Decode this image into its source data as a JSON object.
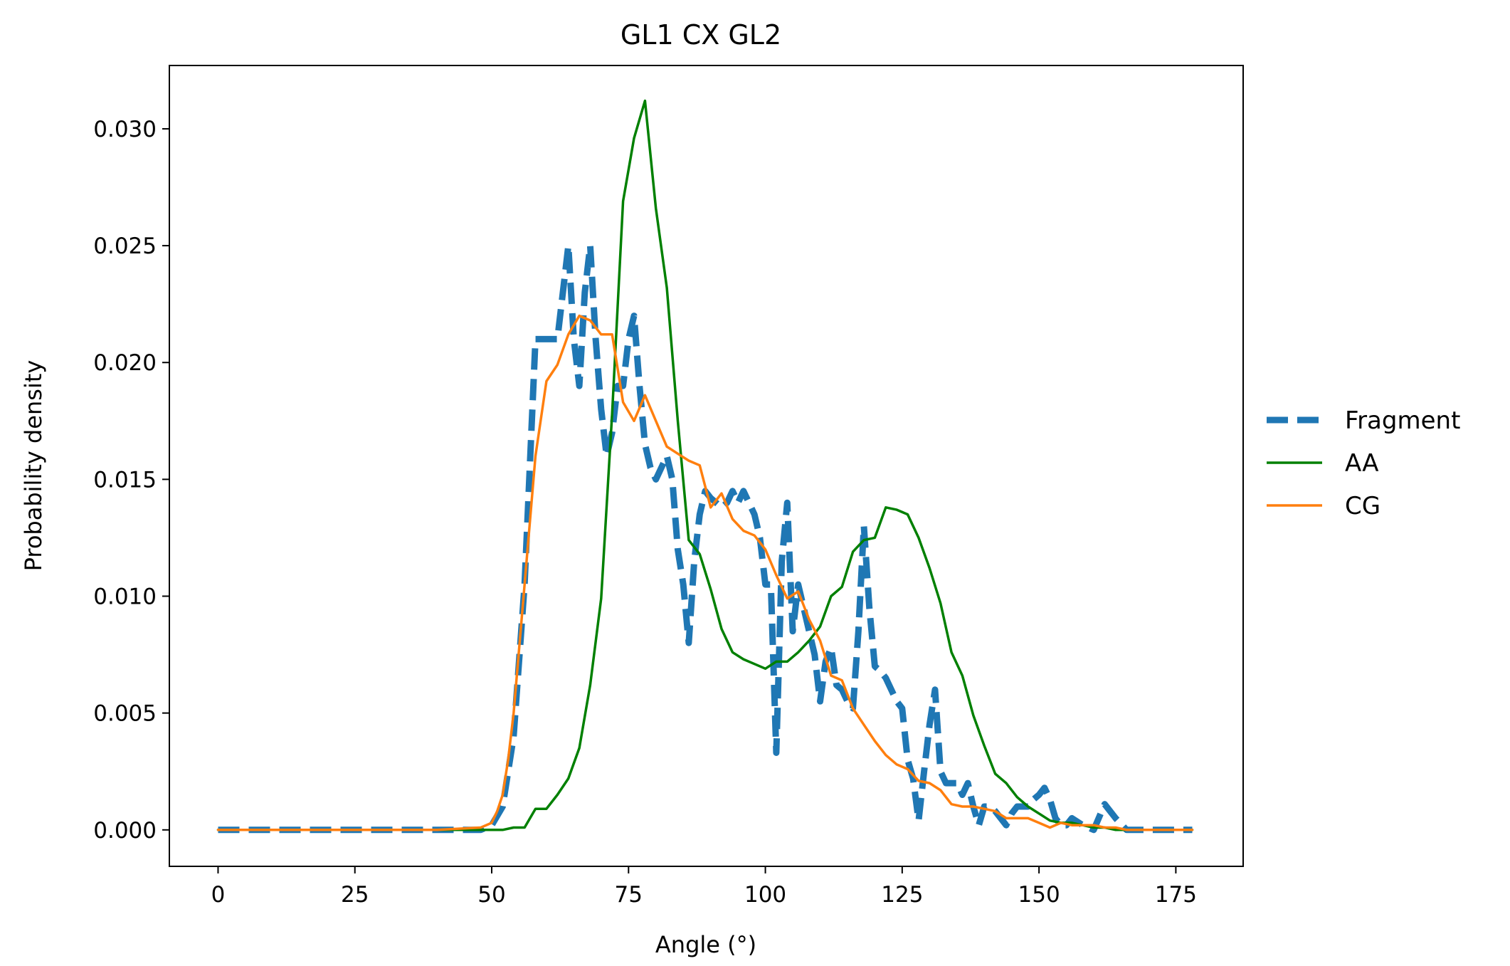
{
  "chart_data": {
    "type": "line",
    "title": "GL1 CX GL2",
    "xlabel": "Angle (°)",
    "ylabel": "Probability density",
    "xlim": [
      -8.9,
      187.3
    ],
    "ylim": [
      -0.00156,
      0.03271
    ],
    "xticks": [
      0,
      25,
      50,
      75,
      100,
      125,
      150,
      175
    ],
    "xtick_labels": [
      "0",
      "25",
      "50",
      "75",
      "100",
      "125",
      "150",
      "175"
    ],
    "yticks": [
      0.0,
      0.005,
      0.01,
      0.015,
      0.02,
      0.025,
      0.03
    ],
    "ytick_labels": [
      "0.000",
      "0.005",
      "0.010",
      "0.015",
      "0.020",
      "0.025",
      "0.030"
    ],
    "grid": false,
    "legend": "center-right-outside",
    "series": [
      {
        "name": "Fragment",
        "color": "#1f77b4",
        "style": "dashed",
        "x": [
          0,
          10,
          20,
          30,
          40,
          48,
          50,
          52,
          54,
          56,
          58,
          60,
          62,
          63,
          64,
          65,
          66,
          67,
          68,
          69,
          70,
          71,
          72,
          73,
          74,
          75,
          76,
          77,
          78,
          79,
          80,
          81,
          82,
          83,
          84,
          85,
          86,
          87,
          88,
          89,
          90,
          91,
          92,
          93,
          94,
          95,
          96,
          97,
          98,
          99,
          100,
          101,
          102,
          103,
          104,
          105,
          106,
          107,
          108,
          109,
          110,
          111,
          112,
          113,
          114,
          115,
          116,
          117,
          118,
          119,
          120,
          121,
          122,
          123,
          124,
          125,
          126,
          127,
          128,
          129,
          130,
          131,
          132,
          133,
          134,
          135,
          136,
          137,
          138,
          139,
          140,
          141,
          142,
          143,
          144,
          145,
          146,
          147,
          148,
          149,
          150,
          151,
          152,
          153,
          154,
          155,
          156,
          158,
          160,
          162,
          164,
          166,
          170,
          178
        ],
        "values": [
          0.0,
          0.0,
          0.0,
          0.0,
          0.0,
          0.0,
          0.0002,
          0.001,
          0.004,
          0.0105,
          0.021,
          0.021,
          0.021,
          0.023,
          0.025,
          0.021,
          0.019,
          0.023,
          0.025,
          0.021,
          0.018,
          0.016,
          0.017,
          0.019,
          0.019,
          0.021,
          0.022,
          0.019,
          0.0165,
          0.0155,
          0.015,
          0.0155,
          0.016,
          0.015,
          0.012,
          0.0105,
          0.008,
          0.0115,
          0.0135,
          0.0145,
          0.0142,
          0.014,
          0.0138,
          0.014,
          0.0145,
          0.014,
          0.0145,
          0.014,
          0.0135,
          0.0125,
          0.0105,
          0.0105,
          0.0033,
          0.0115,
          0.014,
          0.0085,
          0.0105,
          0.0095,
          0.0085,
          0.0075,
          0.0055,
          0.0072,
          0.0078,
          0.0062,
          0.006,
          0.0055,
          0.0052,
          0.0085,
          0.013,
          0.0095,
          0.007,
          0.0068,
          0.0065,
          0.006,
          0.0055,
          0.0052,
          0.003,
          0.0022,
          0.0004,
          0.0025,
          0.0045,
          0.006,
          0.0025,
          0.002,
          0.002,
          0.002,
          0.0015,
          0.002,
          0.001,
          0.0002,
          0.001,
          0.001,
          0.0008,
          0.0005,
          0.0002,
          0.0007,
          0.001,
          0.001,
          0.001,
          0.0013,
          0.0015,
          0.0018,
          0.0013,
          0.0005,
          0.0002,
          0.0002,
          0.0005,
          0.0002,
          0.0,
          0.0011,
          0.0005,
          0.0,
          0.0,
          0.0
        ]
      },
      {
        "name": "AA",
        "color": "#008000",
        "style": "solid",
        "x": [
          0,
          10,
          20,
          30,
          40,
          50,
          52,
          54,
          56,
          58,
          60,
          62,
          64,
          66,
          68,
          70,
          72,
          74,
          76,
          78,
          80,
          82,
          84,
          86,
          88,
          90,
          92,
          94,
          96,
          98,
          100,
          102,
          104,
          106,
          108,
          110,
          112,
          114,
          116,
          118,
          120,
          122,
          124,
          126,
          128,
          130,
          132,
          134,
          136,
          138,
          140,
          142,
          144,
          146,
          148,
          150,
          152,
          154,
          156,
          158,
          160,
          162,
          164,
          166,
          168,
          170,
          178
        ],
        "values": [
          0.0,
          0.0,
          0.0,
          0.0,
          0.0,
          0.0,
          0.0,
          0.0001,
          0.0001,
          0.0009,
          0.0009,
          0.0015,
          0.0022,
          0.0035,
          0.0062,
          0.0099,
          0.0178,
          0.0269,
          0.0296,
          0.0312,
          0.0266,
          0.0232,
          0.0175,
          0.0124,
          0.0118,
          0.0103,
          0.0086,
          0.0076,
          0.0073,
          0.0071,
          0.0069,
          0.0072,
          0.0072,
          0.0076,
          0.0081,
          0.0087,
          0.01,
          0.0104,
          0.0119,
          0.0124,
          0.0125,
          0.0138,
          0.0137,
          0.0135,
          0.0125,
          0.0112,
          0.0097,
          0.0076,
          0.0066,
          0.0049,
          0.0036,
          0.0024,
          0.002,
          0.0014,
          0.001,
          0.0007,
          0.0004,
          0.0003,
          0.0003,
          0.0002,
          0.0001,
          0.0001,
          0.0,
          0.0,
          0.0,
          0.0,
          0.0
        ]
      },
      {
        "name": "CG",
        "color": "#ff7f0e",
        "style": "solid",
        "x": [
          0,
          10,
          20,
          30,
          40,
          48,
          50,
          51,
          52,
          53,
          54,
          56,
          58,
          60,
          62,
          64,
          66,
          68,
          70,
          72,
          74,
          76,
          78,
          80,
          82,
          84,
          86,
          88,
          90,
          92,
          94,
          96,
          98,
          100,
          102,
          104,
          106,
          108,
          110,
          112,
          114,
          116,
          118,
          120,
          122,
          124,
          126,
          128,
          130,
          132,
          134,
          136,
          138,
          140,
          142,
          144,
          146,
          148,
          150,
          152,
          154,
          156,
          158,
          160,
          162,
          164,
          166,
          168,
          170,
          178
        ],
        "values": [
          0.0,
          0.0,
          0.0,
          0.0,
          0.0,
          0.0001,
          0.0003,
          0.0008,
          0.0015,
          0.003,
          0.005,
          0.0105,
          0.016,
          0.0192,
          0.0199,
          0.0212,
          0.022,
          0.0218,
          0.0212,
          0.0212,
          0.0183,
          0.0175,
          0.0186,
          0.0175,
          0.0164,
          0.0161,
          0.0158,
          0.0156,
          0.0138,
          0.0144,
          0.0133,
          0.0128,
          0.0126,
          0.012,
          0.0109,
          0.0099,
          0.0102,
          0.009,
          0.0081,
          0.0066,
          0.0064,
          0.0052,
          0.0045,
          0.0038,
          0.0032,
          0.0028,
          0.0026,
          0.0021,
          0.002,
          0.0017,
          0.0011,
          0.001,
          0.001,
          0.0009,
          0.0008,
          0.0005,
          0.0005,
          0.0005,
          0.0003,
          0.0001,
          0.0003,
          0.0002,
          0.0002,
          0.0002,
          0.0001,
          0.0001,
          0.0,
          0.0,
          0.0,
          0.0
        ]
      }
    ]
  }
}
